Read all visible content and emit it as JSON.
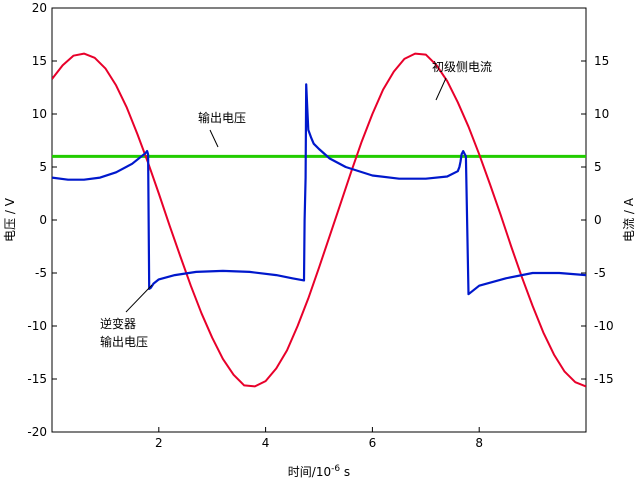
{
  "chart_data": {
    "type": "line",
    "xlabel": "时间/10",
    "xlabel_exp": "-6",
    "xlabel_unit": " s",
    "ylabel_left": "电压 / V",
    "ylabel_right": "电流 / A",
    "xlim": [
      0,
      10
    ],
    "ylim_left": [
      -20,
      20
    ],
    "ylim_right": [
      -20,
      20
    ],
    "x_ticks": [
      2,
      4,
      6,
      8
    ],
    "y_ticks_left": [
      20,
      15,
      10,
      5,
      0,
      -5,
      -10,
      -15,
      -20
    ],
    "y_ticks_right": [
      15,
      10,
      5,
      0,
      -5,
      -10,
      -15
    ],
    "grid": false,
    "annotations": [
      {
        "label": "初级侧电流",
        "series": "primary_current"
      },
      {
        "label": "输出电压",
        "series": "output_voltage"
      },
      {
        "label_lines": [
          "逆变器",
          "输出电压"
        ],
        "series": "inverter_voltage"
      }
    ],
    "series": [
      {
        "id": "primary_current",
        "axis": "right",
        "color": "#e8002a",
        "x": [
          0,
          0.2,
          0.4,
          0.6,
          0.8,
          1.0,
          1.2,
          1.4,
          1.6,
          1.8,
          2.0,
          2.2,
          2.4,
          2.6,
          2.8,
          3.0,
          3.2,
          3.4,
          3.6,
          3.8,
          4.0,
          4.2,
          4.4,
          4.6,
          4.8,
          5.0,
          5.2,
          5.4,
          5.6,
          5.8,
          6.0,
          6.2,
          6.4,
          6.6,
          6.8,
          7.0,
          7.2,
          7.4,
          7.6,
          7.8,
          8.0,
          8.2,
          8.4,
          8.6,
          8.8,
          9.0,
          9.2,
          9.4,
          9.6,
          9.8,
          10.0
        ],
        "values": [
          13.3,
          14.6,
          15.5,
          15.7,
          15.3,
          14.3,
          12.7,
          10.6,
          8.1,
          5.4,
          2.5,
          -0.5,
          -3.4,
          -6.2,
          -8.8,
          -11.1,
          -13.1,
          -14.6,
          -15.6,
          -15.7,
          -15.2,
          -14.0,
          -12.3,
          -10.0,
          -7.4,
          -4.5,
          -1.5,
          1.5,
          4.5,
          7.4,
          10.0,
          12.3,
          14.0,
          15.2,
          15.7,
          15.6,
          14.6,
          13.1,
          11.1,
          8.8,
          6.2,
          3.4,
          0.5,
          -2.5,
          -5.4,
          -8.1,
          -10.6,
          -12.7,
          -14.3,
          -15.3,
          -15.7
        ]
      },
      {
        "id": "output_voltage",
        "axis": "left",
        "color": "#22cc00",
        "x": [
          0,
          10
        ],
        "values": [
          6.0,
          6.0
        ]
      },
      {
        "id": "inverter_voltage",
        "axis": "left",
        "color": "#0018cc",
        "x": [
          0,
          0.3,
          0.6,
          0.9,
          1.2,
          1.5,
          1.75,
          1.78,
          1.8,
          1.82,
          1.85,
          1.9,
          2.0,
          2.3,
          2.7,
          3.2,
          3.7,
          4.2,
          4.5,
          4.72,
          4.73,
          4.75,
          4.76,
          4.78,
          4.8,
          4.85,
          4.9,
          5.0,
          5.2,
          5.5,
          6.0,
          6.5,
          7.0,
          7.4,
          7.6,
          7.63,
          7.65,
          7.67,
          7.7,
          7.75,
          7.8,
          8.0,
          8.5,
          9.0,
          9.5,
          10.0
        ],
        "values": [
          4.0,
          3.8,
          3.8,
          4.0,
          4.5,
          5.3,
          6.3,
          6.5,
          6.2,
          -6.5,
          -6.4,
          -6.0,
          -5.6,
          -5.2,
          -4.9,
          -4.8,
          -4.9,
          -5.2,
          -5.5,
          -5.7,
          0.0,
          4.0,
          12.8,
          10.5,
          8.5,
          7.8,
          7.2,
          6.7,
          5.8,
          5.0,
          4.2,
          3.9,
          3.9,
          4.1,
          4.6,
          5.0,
          5.5,
          6.2,
          6.5,
          6.0,
          -7.0,
          -6.2,
          -5.5,
          -5.0,
          -5.0,
          -5.2
        ]
      }
    ]
  }
}
